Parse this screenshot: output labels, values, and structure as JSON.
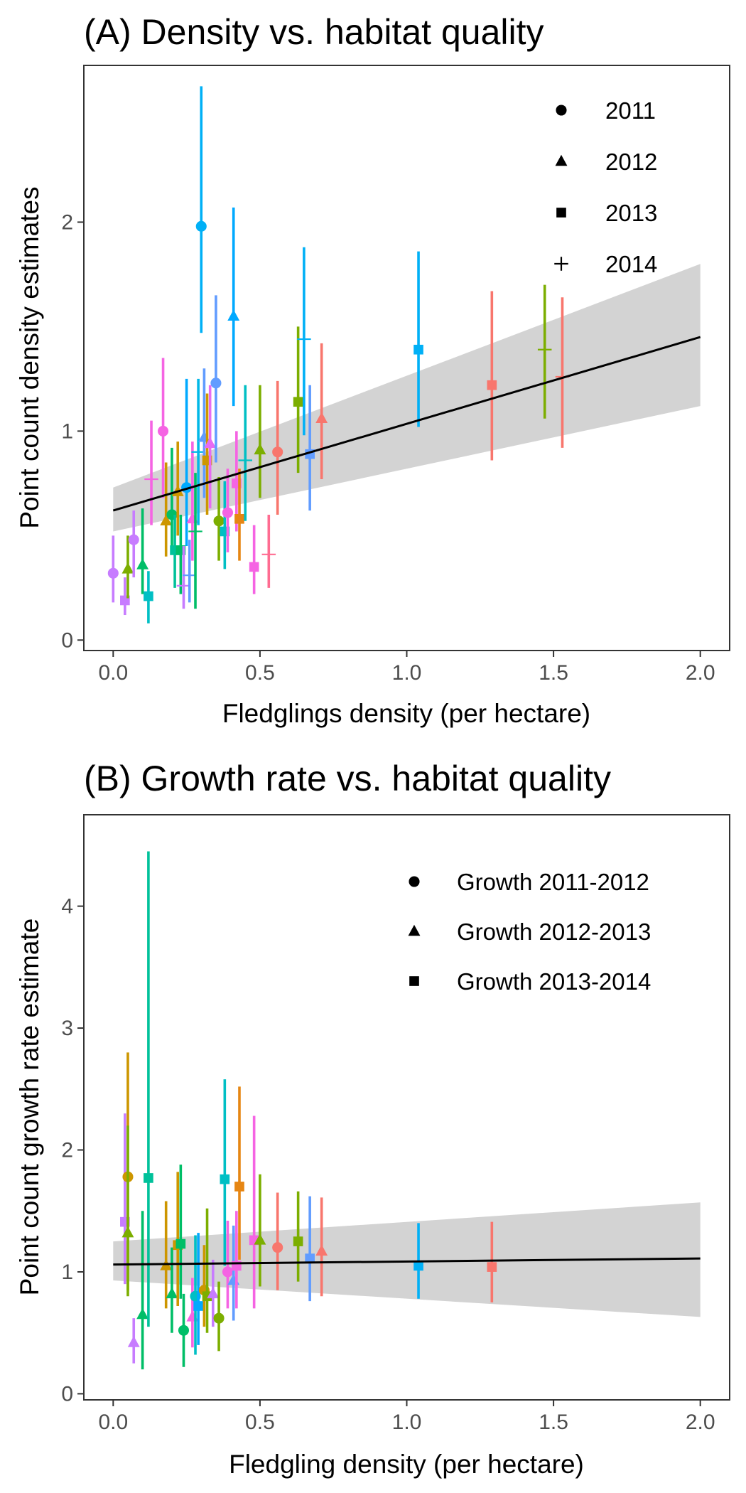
{
  "chart_data": [
    {
      "type": "scatter",
      "title": "(A) Density vs. habitat quality",
      "xlabel": "Fledglings density (per hectare)",
      "ylabel": "Point count density estimates",
      "xlim": [
        -0.1,
        2.1
      ],
      "ylim": [
        -0.05,
        2.75
      ],
      "xticks": [
        "0.0",
        "0.5",
        "1.0",
        "1.5",
        "2.0"
      ],
      "yticks": [
        "0",
        "1",
        "2"
      ],
      "legend_position": "top-right",
      "legend": [
        {
          "label": "2011",
          "shape": "circle"
        },
        {
          "label": "2012",
          "shape": "triangle"
        },
        {
          "label": "2013",
          "shape": "square"
        },
        {
          "label": "2014",
          "shape": "plus"
        }
      ],
      "fit": {
        "x0": 0.0,
        "y0": 0.62,
        "x1": 2.0,
        "y1": 1.45,
        "lower0": 0.52,
        "upper0": 0.73,
        "lower1": 1.12,
        "upper1": 1.8
      },
      "points": [
        {
          "x": 0.0,
          "y": 0.32,
          "lo": 0.18,
          "hi": 0.5,
          "shape": "circle",
          "color": "#c77cff"
        },
        {
          "x": 0.04,
          "y": 0.19,
          "lo": 0.12,
          "hi": 0.3,
          "shape": "square",
          "color": "#c77cff"
        },
        {
          "x": 0.05,
          "y": 0.34,
          "lo": 0.2,
          "hi": 0.5,
          "shape": "triangle",
          "color": "#7cae00"
        },
        {
          "x": 0.07,
          "y": 0.48,
          "lo": 0.3,
          "hi": 0.62,
          "shape": "circle",
          "color": "#c77cff"
        },
        {
          "x": 0.1,
          "y": 0.36,
          "lo": 0.22,
          "hi": 0.63,
          "shape": "triangle",
          "color": "#00be67"
        },
        {
          "x": 0.12,
          "y": 0.21,
          "lo": 0.08,
          "hi": 0.33,
          "shape": "square",
          "color": "#00bfc4"
        },
        {
          "x": 0.13,
          "y": 0.77,
          "lo": 0.55,
          "hi": 1.05,
          "shape": "plus",
          "color": "#f564e3"
        },
        {
          "x": 0.17,
          "y": 1.0,
          "lo": 0.68,
          "hi": 1.35,
          "shape": "circle",
          "color": "#f564e3"
        },
        {
          "x": 0.18,
          "y": 0.57,
          "lo": 0.4,
          "hi": 0.85,
          "shape": "triangle",
          "color": "#cd9600"
        },
        {
          "x": 0.2,
          "y": 0.6,
          "lo": 0.42,
          "hi": 0.92,
          "shape": "circle",
          "color": "#00be67"
        },
        {
          "x": 0.21,
          "y": 0.43,
          "lo": 0.25,
          "hi": 0.6,
          "shape": "square",
          "color": "#00c19a"
        },
        {
          "x": 0.22,
          "y": 0.71,
          "lo": 0.5,
          "hi": 0.95,
          "shape": "triangle",
          "color": "#cd9600"
        },
        {
          "x": 0.23,
          "y": 0.43,
          "lo": 0.22,
          "hi": 0.6,
          "shape": "square",
          "color": "#00be67"
        },
        {
          "x": 0.24,
          "y": 0.26,
          "lo": 0.15,
          "hi": 0.45,
          "shape": "plus",
          "color": "#c77cff"
        },
        {
          "x": 0.25,
          "y": 0.73,
          "lo": 0.45,
          "hi": 1.25,
          "shape": "circle",
          "color": "#00a9ff"
        },
        {
          "x": 0.26,
          "y": 0.31,
          "lo": 0.18,
          "hi": 0.48,
          "shape": "plus",
          "color": "#619cff"
        },
        {
          "x": 0.27,
          "y": 0.58,
          "lo": 0.38,
          "hi": 0.95,
          "shape": "triangle",
          "color": "#f564e3"
        },
        {
          "x": 0.28,
          "y": 0.52,
          "lo": 0.15,
          "hi": 0.8,
          "shape": "plus",
          "color": "#00be67"
        },
        {
          "x": 0.29,
          "y": 0.9,
          "lo": 0.55,
          "hi": 1.25,
          "shape": "plus",
          "color": "#00b8e7"
        },
        {
          "x": 0.3,
          "y": 1.98,
          "lo": 1.47,
          "hi": 2.65,
          "shape": "circle",
          "color": "#00b0f6"
        },
        {
          "x": 0.31,
          "y": 0.97,
          "lo": 0.68,
          "hi": 1.3,
          "shape": "triangle",
          "color": "#619cff"
        },
        {
          "x": 0.32,
          "y": 0.86,
          "lo": 0.6,
          "hi": 1.18,
          "shape": "square",
          "color": "#cd9600"
        },
        {
          "x": 0.33,
          "y": 0.94,
          "lo": 0.63,
          "hi": 1.22,
          "shape": "triangle",
          "color": "#e76bf3"
        },
        {
          "x": 0.35,
          "y": 1.23,
          "lo": 0.85,
          "hi": 1.65,
          "shape": "circle",
          "color": "#619cff"
        },
        {
          "x": 0.36,
          "y": 0.57,
          "lo": 0.38,
          "hi": 0.78,
          "shape": "circle",
          "color": "#7cae00"
        },
        {
          "x": 0.38,
          "y": 0.52,
          "lo": 0.34,
          "hi": 0.76,
          "shape": "square",
          "color": "#00bfc4"
        },
        {
          "x": 0.39,
          "y": 0.61,
          "lo": 0.42,
          "hi": 0.82,
          "shape": "circle",
          "color": "#f564e3"
        },
        {
          "x": 0.41,
          "y": 1.55,
          "lo": 1.12,
          "hi": 2.07,
          "shape": "triangle",
          "color": "#00a9ff"
        },
        {
          "x": 0.42,
          "y": 0.75,
          "lo": 0.52,
          "hi": 1.0,
          "shape": "square",
          "color": "#f564e3"
        },
        {
          "x": 0.43,
          "y": 0.58,
          "lo": 0.38,
          "hi": 0.82,
          "shape": "square",
          "color": "#e68613"
        },
        {
          "x": 0.45,
          "y": 0.86,
          "lo": 0.57,
          "hi": 1.22,
          "shape": "plus",
          "color": "#00bfc4"
        },
        {
          "x": 0.48,
          "y": 0.35,
          "lo": 0.22,
          "hi": 0.55,
          "shape": "square",
          "color": "#f564e3"
        },
        {
          "x": 0.5,
          "y": 0.91,
          "lo": 0.68,
          "hi": 1.22,
          "shape": "triangle",
          "color": "#7cae00"
        },
        {
          "x": 0.53,
          "y": 0.41,
          "lo": 0.25,
          "hi": 0.6,
          "shape": "plus",
          "color": "#ff6c91"
        },
        {
          "x": 0.56,
          "y": 0.9,
          "lo": 0.6,
          "hi": 1.24,
          "shape": "circle",
          "color": "#f8766d"
        },
        {
          "x": 0.63,
          "y": 1.14,
          "lo": 0.8,
          "hi": 1.5,
          "shape": "square",
          "color": "#7cae00"
        },
        {
          "x": 0.65,
          "y": 1.44,
          "lo": 0.98,
          "hi": 1.88,
          "shape": "plus",
          "color": "#00b0f6"
        },
        {
          "x": 0.67,
          "y": 0.89,
          "lo": 0.62,
          "hi": 1.22,
          "shape": "square",
          "color": "#619cff"
        },
        {
          "x": 0.71,
          "y": 1.06,
          "lo": 0.77,
          "hi": 1.42,
          "shape": "triangle",
          "color": "#f8766d"
        },
        {
          "x": 1.04,
          "y": 1.39,
          "lo": 1.02,
          "hi": 1.86,
          "shape": "square",
          "color": "#00b0f6"
        },
        {
          "x": 1.29,
          "y": 1.22,
          "lo": 0.86,
          "hi": 1.67,
          "shape": "square",
          "color": "#f8766d"
        },
        {
          "x": 1.47,
          "y": 1.39,
          "lo": 1.06,
          "hi": 1.7,
          "shape": "plus",
          "color": "#7cae00"
        },
        {
          "x": 1.53,
          "y": 1.26,
          "lo": 0.92,
          "hi": 1.64,
          "shape": "plus",
          "color": "#f8766d"
        }
      ]
    },
    {
      "type": "scatter",
      "title": "(B) Growth rate vs. habitat quality",
      "xlabel": "Fledgling density (per hectare)",
      "ylabel": "Point count growth rate estimate",
      "xlim": [
        -0.1,
        2.1
      ],
      "ylim": [
        -0.05,
        4.75
      ],
      "xticks": [
        "0.0",
        "0.5",
        "1.0",
        "1.5",
        "2.0"
      ],
      "yticks": [
        "0",
        "1",
        "2",
        "3",
        "4"
      ],
      "legend_position": "top-right",
      "legend": [
        {
          "label": "Growth 2011-2012",
          "shape": "circle"
        },
        {
          "label": "Growth 2012-2013",
          "shape": "triangle"
        },
        {
          "label": "Growth 2013-2014",
          "shape": "square"
        }
      ],
      "fit": {
        "x0": 0.0,
        "y0": 1.06,
        "x1": 2.0,
        "y1": 1.11,
        "lower0": 0.93,
        "upper0": 1.25,
        "lower1": 0.63,
        "upper1": 1.57
      },
      "points": [
        {
          "x": 0.04,
          "y": 1.41,
          "lo": 0.9,
          "hi": 2.3,
          "shape": "square",
          "color": "#c77cff"
        },
        {
          "x": 0.05,
          "y": 1.78,
          "lo": 0.85,
          "hi": 2.8,
          "shape": "circle",
          "color": "#cd9600"
        },
        {
          "x": 0.05,
          "y": 1.32,
          "lo": 0.8,
          "hi": 2.2,
          "shape": "triangle",
          "color": "#7cae00"
        },
        {
          "x": 0.07,
          "y": 0.42,
          "lo": 0.25,
          "hi": 0.62,
          "shape": "triangle",
          "color": "#c77cff"
        },
        {
          "x": 0.1,
          "y": 0.65,
          "lo": 0.2,
          "hi": 1.5,
          "shape": "triangle",
          "color": "#00be67"
        },
        {
          "x": 0.12,
          "y": 1.77,
          "lo": 0.55,
          "hi": 4.45,
          "shape": "square",
          "color": "#00c19a"
        },
        {
          "x": 0.18,
          "y": 1.05,
          "lo": 0.7,
          "hi": 1.58,
          "shape": "triangle",
          "color": "#cd9600"
        },
        {
          "x": 0.2,
          "y": 0.82,
          "lo": 0.5,
          "hi": 1.2,
          "shape": "triangle",
          "color": "#00be67"
        },
        {
          "x": 0.22,
          "y": 1.22,
          "lo": 0.72,
          "hi": 1.82,
          "shape": "square",
          "color": "#cd9600"
        },
        {
          "x": 0.23,
          "y": 1.23,
          "lo": 0.78,
          "hi": 1.88,
          "shape": "square",
          "color": "#00be67"
        },
        {
          "x": 0.24,
          "y": 0.52,
          "lo": 0.22,
          "hi": 0.82,
          "shape": "circle",
          "color": "#00be67"
        },
        {
          "x": 0.27,
          "y": 0.63,
          "lo": 0.38,
          "hi": 0.95,
          "shape": "triangle",
          "color": "#f564e3"
        },
        {
          "x": 0.28,
          "y": 0.8,
          "lo": 0.32,
          "hi": 1.3,
          "shape": "circle",
          "color": "#00bfc4"
        },
        {
          "x": 0.29,
          "y": 0.72,
          "lo": 0.4,
          "hi": 1.32,
          "shape": "square",
          "color": "#00a9ff"
        },
        {
          "x": 0.31,
          "y": 0.85,
          "lo": 0.55,
          "hi": 1.22,
          "shape": "circle",
          "color": "#cd9600"
        },
        {
          "x": 0.32,
          "y": 0.8,
          "lo": 0.5,
          "hi": 1.52,
          "shape": "square",
          "color": "#7cae00"
        },
        {
          "x": 0.34,
          "y": 0.82,
          "lo": 0.55,
          "hi": 1.1,
          "shape": "triangle",
          "color": "#c77cff"
        },
        {
          "x": 0.36,
          "y": 0.62,
          "lo": 0.35,
          "hi": 0.92,
          "shape": "circle",
          "color": "#7cae00"
        },
        {
          "x": 0.38,
          "y": 1.76,
          "lo": 1.05,
          "hi": 2.58,
          "shape": "square",
          "color": "#00bfc4"
        },
        {
          "x": 0.39,
          "y": 1.0,
          "lo": 0.7,
          "hi": 1.42,
          "shape": "circle",
          "color": "#f564e3"
        },
        {
          "x": 0.41,
          "y": 0.93,
          "lo": 0.6,
          "hi": 1.38,
          "shape": "triangle",
          "color": "#619cff"
        },
        {
          "x": 0.42,
          "y": 1.05,
          "lo": 0.7,
          "hi": 1.5,
          "shape": "square",
          "color": "#f564e3"
        },
        {
          "x": 0.43,
          "y": 1.7,
          "lo": 1.1,
          "hi": 2.52,
          "shape": "square",
          "color": "#e68613"
        },
        {
          "x": 0.48,
          "y": 1.26,
          "lo": 0.7,
          "hi": 2.28,
          "shape": "square",
          "color": "#f564e3"
        },
        {
          "x": 0.5,
          "y": 1.26,
          "lo": 0.88,
          "hi": 1.8,
          "shape": "triangle",
          "color": "#7cae00"
        },
        {
          "x": 0.56,
          "y": 1.2,
          "lo": 0.85,
          "hi": 1.65,
          "shape": "circle",
          "color": "#f8766d"
        },
        {
          "x": 0.63,
          "y": 1.25,
          "lo": 0.92,
          "hi": 1.66,
          "shape": "square",
          "color": "#7cae00"
        },
        {
          "x": 0.67,
          "y": 1.11,
          "lo": 0.76,
          "hi": 1.62,
          "shape": "square",
          "color": "#619cff"
        },
        {
          "x": 0.71,
          "y": 1.17,
          "lo": 0.8,
          "hi": 1.61,
          "shape": "triangle",
          "color": "#f8766d"
        },
        {
          "x": 1.04,
          "y": 1.05,
          "lo": 0.78,
          "hi": 1.4,
          "shape": "square",
          "color": "#00b0f6"
        },
        {
          "x": 1.29,
          "y": 1.04,
          "lo": 0.75,
          "hi": 1.41,
          "shape": "square",
          "color": "#f8766d"
        }
      ]
    }
  ]
}
